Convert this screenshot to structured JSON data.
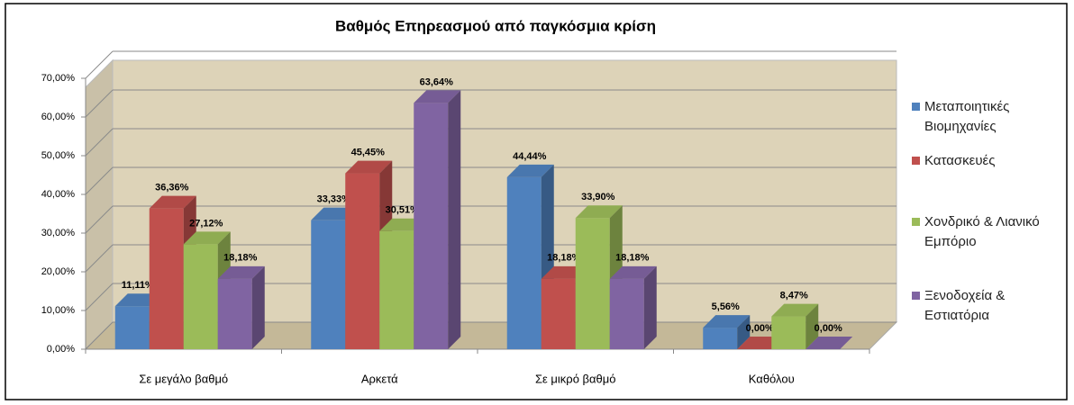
{
  "chart_data": {
    "type": "bar3d",
    "title": "Βαθμός Επηρεασμού από παγκόσμια κρίση",
    "categories": [
      "Σε μεγάλο βαθμό",
      "Αρκετά",
      "Σε μικρό βαθμό",
      "Καθόλου"
    ],
    "series": [
      {
        "name": "Μεταποιητικές Βιομηχανίες",
        "color": "#4f81bd",
        "values": [
          11.11,
          33.33,
          44.44,
          5.56
        ],
        "value_labels": [
          "11,11%",
          "33,33%",
          "44,44%",
          "5,56%"
        ]
      },
      {
        "name": "Κατασκευές",
        "color": "#c0504d",
        "values": [
          36.36,
          45.45,
          18.18,
          0.0
        ],
        "value_labels": [
          "36,36%",
          "45,45%",
          "18,18%",
          "0,00%"
        ]
      },
      {
        "name": "Χονδρικό & Λιανικό Εμπόριο",
        "color": "#9bbb59",
        "values": [
          27.12,
          30.51,
          33.9,
          8.47
        ],
        "value_labels": [
          "27,12%",
          "30,51%",
          "33,90%",
          "8,47%"
        ]
      },
      {
        "name": "Ξενοδοχεία & Εστιατόρια",
        "color": "#8064a2",
        "values": [
          18.18,
          63.64,
          18.18,
          0.0
        ],
        "value_labels": [
          "18,18%",
          "63,64%",
          "18,18%",
          "0,00%"
        ]
      }
    ],
    "ylim": [
      0,
      70
    ],
    "yticks": [
      {
        "value": 0,
        "label": "0,00%"
      },
      {
        "value": 10,
        "label": "10,00%"
      },
      {
        "value": 20,
        "label": "20,00%"
      },
      {
        "value": 30,
        "label": "30,00%"
      },
      {
        "value": 40,
        "label": "40,00%"
      },
      {
        "value": 50,
        "label": "50,00%"
      },
      {
        "value": 60,
        "label": "60,00%"
      },
      {
        "value": 70,
        "label": "70,00%"
      }
    ],
    "grid": true,
    "legend": "right"
  }
}
